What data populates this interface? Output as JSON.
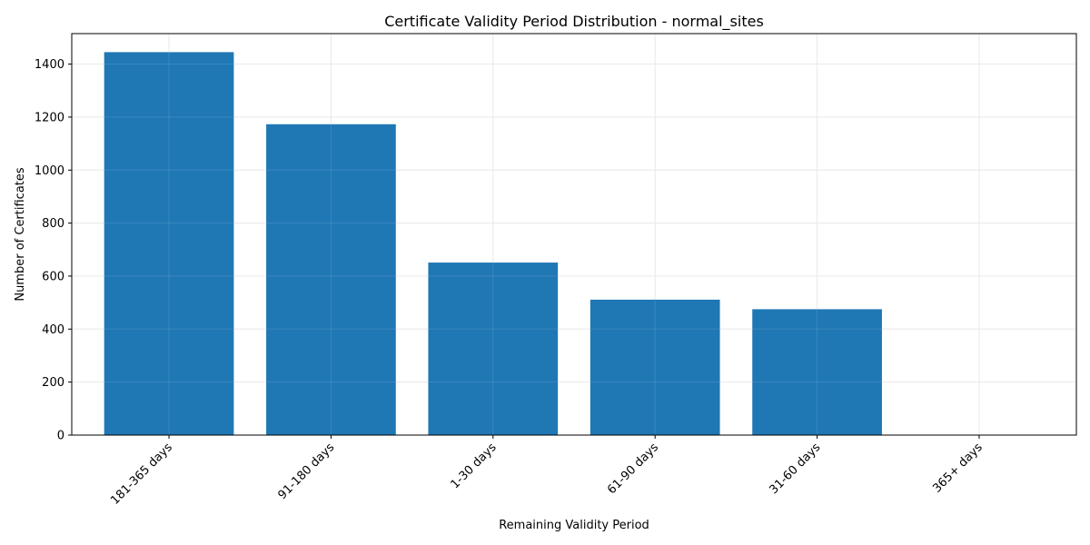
{
  "chart_data": {
    "type": "bar",
    "title": "Certificate Validity Period Distribution - normal_sites",
    "xlabel": "Remaining Validity Period",
    "ylabel": "Number of Certificates",
    "categories": [
      "181-365 days",
      "91-180 days",
      "1-30 days",
      "61-90 days",
      "31-60 days",
      "365+ days"
    ],
    "values": [
      1445,
      1173,
      651,
      511,
      475,
      0
    ],
    "ylim": [
      0,
      1515
    ],
    "yticks": [
      0,
      200,
      400,
      600,
      800,
      1000,
      1200,
      1400
    ],
    "grid": true,
    "bar_color": "#1f77b4",
    "grid_color": "#e6e6e6"
  }
}
